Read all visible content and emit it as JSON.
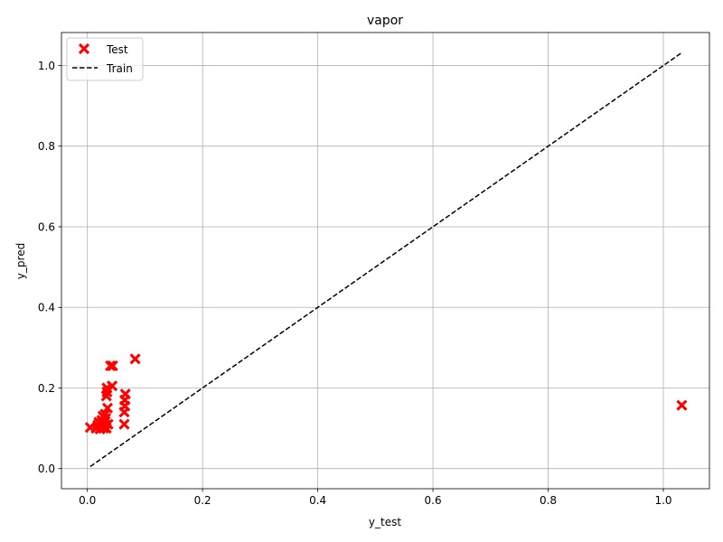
{
  "chart_data": {
    "type": "scatter",
    "title": "vapor",
    "xlabel": "y_test",
    "ylabel": "y_pred",
    "xlim": [
      -0.045,
      1.08
    ],
    "ylim": [
      -0.05,
      1.082
    ],
    "xticks": [
      0.0,
      0.2,
      0.4,
      0.6,
      0.8,
      1.0
    ],
    "yticks": [
      0.0,
      0.2,
      0.4,
      0.6,
      0.8,
      1.0
    ],
    "xtick_labels": [
      "0.0",
      "0.2",
      "0.4",
      "0.6",
      "0.8",
      "1.0"
    ],
    "ytick_labels": [
      "0.0",
      "0.2",
      "0.4",
      "0.6",
      "0.8",
      "1.0"
    ],
    "grid": true,
    "legend_position": "upper-left",
    "series": [
      {
        "name": "Test",
        "kind": "scatter",
        "marker": "X",
        "color": "#ff0000",
        "points": [
          {
            "x": 0.005,
            "y": 0.102
          },
          {
            "x": 0.015,
            "y": 0.1
          },
          {
            "x": 0.018,
            "y": 0.108
          },
          {
            "x": 0.02,
            "y": 0.115
          },
          {
            "x": 0.022,
            "y": 0.098
          },
          {
            "x": 0.023,
            "y": 0.112
          },
          {
            "x": 0.025,
            "y": 0.12
          },
          {
            "x": 0.026,
            "y": 0.105
          },
          {
            "x": 0.027,
            "y": 0.13
          },
          {
            "x": 0.028,
            "y": 0.1
          },
          {
            "x": 0.03,
            "y": 0.11
          },
          {
            "x": 0.031,
            "y": 0.135
          },
          {
            "x": 0.032,
            "y": 0.125
          },
          {
            "x": 0.033,
            "y": 0.1
          },
          {
            "x": 0.033,
            "y": 0.18
          },
          {
            "x": 0.034,
            "y": 0.19
          },
          {
            "x": 0.034,
            "y": 0.2
          },
          {
            "x": 0.035,
            "y": 0.15
          },
          {
            "x": 0.036,
            "y": 0.11
          },
          {
            "x": 0.04,
            "y": 0.255
          },
          {
            "x": 0.044,
            "y": 0.255
          },
          {
            "x": 0.043,
            "y": 0.205
          },
          {
            "x": 0.064,
            "y": 0.11
          },
          {
            "x": 0.064,
            "y": 0.14
          },
          {
            "x": 0.065,
            "y": 0.155
          },
          {
            "x": 0.065,
            "y": 0.17
          },
          {
            "x": 0.066,
            "y": 0.185
          },
          {
            "x": 0.083,
            "y": 0.272
          },
          {
            "x": 1.032,
            "y": 0.157
          }
        ]
      },
      {
        "name": "Train",
        "kind": "line",
        "style": "dashed",
        "color": "#000000",
        "points": [
          {
            "x": 0.005,
            "y": 0.005
          },
          {
            "x": 1.032,
            "y": 1.032
          }
        ]
      }
    ]
  }
}
